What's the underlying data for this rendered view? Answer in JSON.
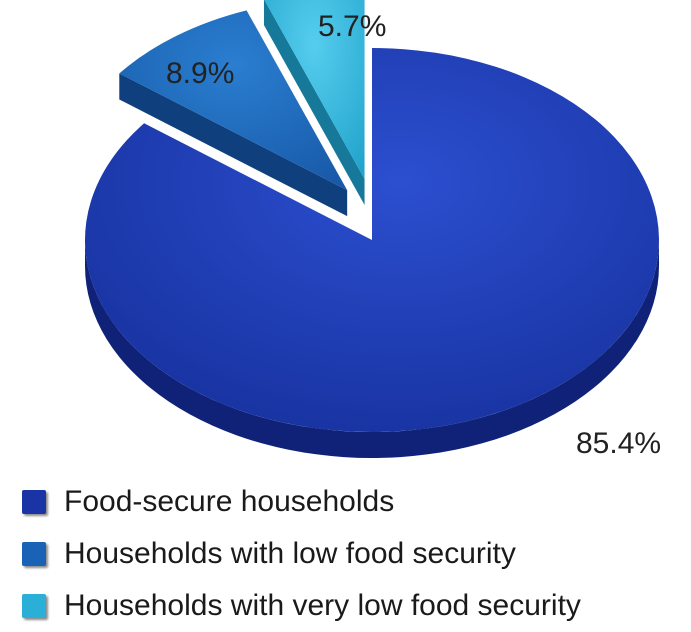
{
  "chart_data": {
    "type": "pie",
    "style": "3d-exploded",
    "slices": [
      {
        "label": "Food-secure households",
        "value": 85.4,
        "display": "85.4%",
        "color": "#1a34a6",
        "side_color": "#102277"
      },
      {
        "label": "Households with low food security",
        "value": 8.9,
        "display": "8.9%",
        "color": "#1a62b6",
        "side_color": "#0f3f7d"
      },
      {
        "label": "Households with very low food security",
        "value": 5.7,
        "display": "5.7%",
        "color": "#2ab0d6",
        "side_color": "#17799a"
      }
    ],
    "legend_position": "bottom-left"
  }
}
